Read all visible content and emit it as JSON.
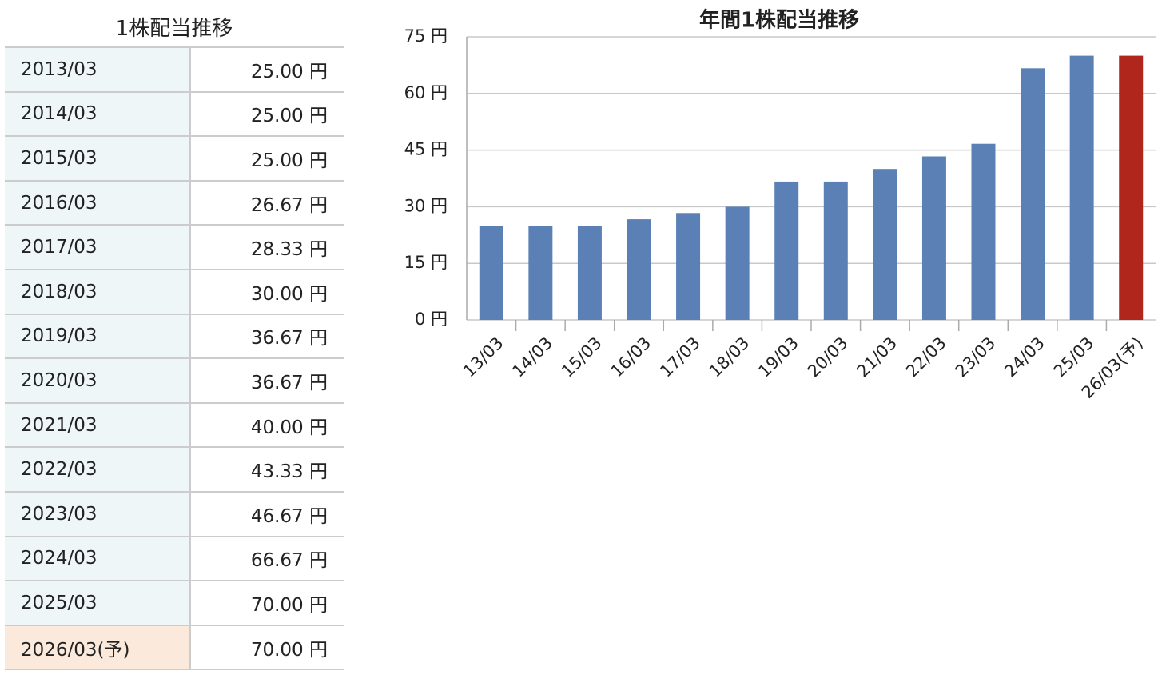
{
  "table": {
    "title": "1株配当推移",
    "rows": [
      [
        "2013/03",
        "25.00 円"
      ],
      [
        "2014/03",
        "25.00 円"
      ],
      [
        "2015/03",
        "25.00 円"
      ],
      [
        "2016/03",
        "26.67 円"
      ],
      [
        "2017/03",
        "28.33 円"
      ],
      [
        "2018/03",
        "30.00 円"
      ],
      [
        "2019/03",
        "36.67 円"
      ],
      [
        "2020/03",
        "36.67 円"
      ],
      [
        "2021/03",
        "40.00 円"
      ],
      [
        "2022/03",
        "43.33 円"
      ],
      [
        "2023/03",
        "46.67 円"
      ],
      [
        "2024/03",
        "66.67 円"
      ],
      [
        "2025/03",
        "70.00 円"
      ],
      [
        "2026/03(予)",
        "70.00 円"
      ]
    ]
  },
  "chart_data": {
    "type": "bar",
    "title": "年間1株配当推移",
    "categories": [
      "13/03",
      "14/03",
      "15/03",
      "16/03",
      "17/03",
      "18/03",
      "19/03",
      "20/03",
      "21/03",
      "22/03",
      "23/03",
      "24/03",
      "25/03",
      "26/03(予)"
    ],
    "values": [
      25,
      25,
      25,
      26.67,
      28.33,
      30,
      36.67,
      36.67,
      40,
      43.33,
      46.67,
      66.67,
      70,
      70
    ],
    "colors": [
      "#5b80b6",
      "#5b80b6",
      "#5b80b6",
      "#5b80b6",
      "#5b80b6",
      "#5b80b6",
      "#5b80b6",
      "#5b80b6",
      "#5b80b6",
      "#5b80b6",
      "#5b80b6",
      "#5b80b6",
      "#5b80b6",
      "#b0261d"
    ],
    "ylim": [
      0,
      75
    ],
    "yticks": [
      {
        "value": 0,
        "label": "0 円"
      },
      {
        "value": 15,
        "label": "15 円"
      },
      {
        "value": 30,
        "label": "30 円"
      },
      {
        "value": 45,
        "label": "45 円"
      },
      {
        "value": 60,
        "label": "60 円"
      },
      {
        "value": 75,
        "label": "75 円"
      }
    ],
    "grid": true
  }
}
